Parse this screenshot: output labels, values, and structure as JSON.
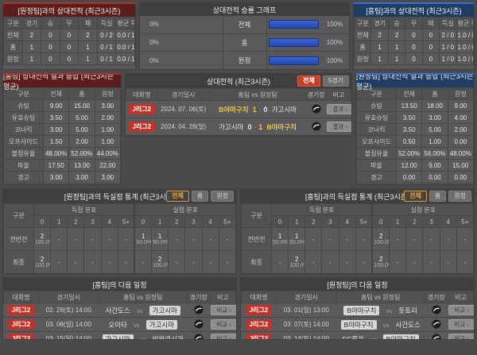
{
  "colors": {
    "accent_red": "#c1332a",
    "accent_blue": "#2b52c8",
    "accent_yellow": "#f3c73f",
    "panel_bg": "#59595b",
    "header_red": "#5c1e1c",
    "header_blue": "#1f3c63"
  },
  "h2h_away": {
    "title": "[원정팀]과의 상대전적 (최근3시즌)",
    "columns": [
      "구분",
      "경기",
      "승",
      "무",
      "패",
      "득실",
      "평균 득실"
    ],
    "rows": [
      [
        "전체",
        "2",
        "0",
        "0",
        "2",
        "0 / 2",
        "0.0 / 1.0"
      ],
      [
        "홈",
        "1",
        "0",
        "0",
        "1",
        "0 / 1",
        "0.0 / 1.0"
      ],
      [
        "원정",
        "1",
        "0",
        "0",
        "1",
        "0 / 1",
        "0.0 / 1.0"
      ]
    ]
  },
  "winrate_chart": {
    "title": "상대전적 승률 그래프",
    "rows": [
      {
        "label": "전체",
        "left_pct": 0,
        "right_pct": 100
      },
      {
        "label": "홈",
        "left_pct": 0,
        "right_pct": 100
      },
      {
        "label": "원정",
        "left_pct": 0,
        "right_pct": 100
      }
    ]
  },
  "chart_data": {
    "type": "bar",
    "orientation": "horizontal",
    "title": "상대전적 승률 그래프",
    "categories": [
      "전체",
      "홈",
      "원정"
    ],
    "series": [
      {
        "name": "홈팀 승률(%)",
        "values": [
          0,
          0,
          0
        ]
      },
      {
        "name": "원정팀 승률(%)",
        "values": [
          100,
          100,
          100
        ]
      }
    ],
    "xlim": [
      0,
      100
    ]
  },
  "h2h_home": {
    "title": "[홈팀]과의 상대전적 (최근3시즌)",
    "columns": [
      "구분",
      "경기",
      "승",
      "무",
      "패",
      "득실",
      "평균 득실"
    ],
    "rows": [
      [
        "전체",
        "2",
        "2",
        "0",
        "0",
        "2 / 0",
        "1.0 / 0.0"
      ],
      [
        "홈",
        "1",
        "1",
        "0",
        "0",
        "1 / 0",
        "1.0 / 0.0"
      ],
      [
        "원정",
        "1",
        "1",
        "0",
        "0",
        "1 / 0",
        "1.0 / 0.0"
      ]
    ]
  },
  "home_summary": {
    "title": "[홈팀] 상대전적 결과 종합 (최근3시즌 평균)",
    "columns": [
      "구분",
      "전체",
      "홈",
      "원정"
    ],
    "rows": [
      [
        "슈팅",
        "9.00",
        "15.00",
        "3.00"
      ],
      [
        "유효슈팅",
        "3.50",
        "5.00",
        "2.00"
      ],
      [
        "코너킥",
        "3.00",
        "5.00",
        "1.00"
      ],
      [
        "오프사이드",
        "1.50",
        "2.00",
        "1.00"
      ],
      [
        "볼점유율",
        "48.00%",
        "52.00%",
        "44.00%"
      ],
      [
        "파울",
        "17.50",
        "13.00",
        "22.00"
      ],
      [
        "경고",
        "3.00",
        "3.00",
        "3.00"
      ],
      [
        "퇴장",
        "0.00",
        "0.00",
        "-"
      ]
    ]
  },
  "away_summary": {
    "title": "[원정팀] 상대전적 결과 종합 (최근3시즌 평균)",
    "columns": [
      "구분",
      "전체",
      "홈",
      "원정"
    ],
    "rows": [
      [
        "슈팅",
        "13.50",
        "18.00",
        "9.00"
      ],
      [
        "유효슈팅",
        "3.50",
        "3.00",
        "4.00"
      ],
      [
        "코너킥",
        "3.50",
        "5.00",
        "2.00"
      ],
      [
        "오프사이드",
        "0.50",
        "1.00",
        "0.00"
      ],
      [
        "볼점유율",
        "52.00%",
        "56.00%",
        "48.00%"
      ],
      [
        "파울",
        "12.00",
        "9.00",
        "15.00"
      ],
      [
        "경고",
        "0.00",
        "0.00",
        "0.00"
      ],
      [
        "퇴장",
        "0.00",
        "-",
        "0.00"
      ]
    ]
  },
  "h2h_matches": {
    "title": "상대전적 (최근3시즌)",
    "filters": [
      {
        "label": "전체",
        "active": true,
        "style": "red"
      },
      {
        "label": "5경기",
        "active": false,
        "style": "gray"
      }
    ],
    "columns": [
      "대회명",
      "경기일시",
      "홈팀 vs 원정팀",
      "경기장",
      "비고"
    ],
    "rows": [
      {
        "league": "J리그2",
        "date": "2024. 07. 06(토)",
        "home": {
          "name": "B야마구치",
          "hl": "yellow"
        },
        "score": [
          {
            "v": "1",
            "hl": true
          },
          {
            "v": "0",
            "hl": false
          }
        ],
        "away": {
          "name": "가고시마",
          "hl": "none"
        },
        "note": "결과 ›"
      },
      {
        "league": "J리그2",
        "date": "2024. 04. 28(일)",
        "home": {
          "name": "가고시마",
          "hl": "none"
        },
        "score": [
          {
            "v": "0",
            "hl": false
          },
          {
            "v": "1",
            "hl": true
          }
        ],
        "away": {
          "name": "B야마구치",
          "hl": "yellow"
        },
        "note": "결과 ›"
      }
    ]
  },
  "goal_stats_away": {
    "title": "[원정팀]과의 득실점 통계 (최근3시즌)",
    "filters": [
      {
        "label": "전체",
        "active": true,
        "style": "orange"
      },
      {
        "label": "홈",
        "active": false,
        "style": "gray"
      },
      {
        "label": "원정",
        "active": false,
        "style": "gray"
      }
    ],
    "corner_label": "구분",
    "groups": [
      "득점 분포",
      "실점 분포"
    ],
    "cols": [
      "0",
      "1",
      "2",
      "3",
      "4",
      "5+"
    ],
    "rows": [
      {
        "label": "전반전",
        "cells": [
          [
            "2",
            "100.0%"
          ],
          "-",
          "-",
          "-",
          "-",
          "-",
          [
            "1",
            "50.0%"
          ],
          [
            "1",
            "50.0%"
          ],
          "-",
          "-",
          "-",
          "-"
        ]
      },
      {
        "label": "최종",
        "cells": [
          [
            "2",
            "100.0%"
          ],
          "-",
          "-",
          "-",
          "-",
          "-",
          "-",
          [
            "2",
            "100.0%"
          ],
          "-",
          "-",
          "-",
          "-"
        ]
      }
    ]
  },
  "goal_stats_home": {
    "title": "[홈팀]과의 득실점 통계 (최근3시즌)",
    "filters": [
      {
        "label": "전체",
        "active": true,
        "style": "orange"
      },
      {
        "label": "홈",
        "active": false,
        "style": "gray"
      },
      {
        "label": "원정",
        "active": false,
        "style": "gray"
      }
    ],
    "corner_label": "구분",
    "groups": [
      "득점 분포",
      "실점 분포"
    ],
    "cols": [
      "0",
      "1",
      "2",
      "3",
      "4",
      "5+"
    ],
    "rows": [
      {
        "label": "전반전",
        "cells": [
          [
            "1",
            "50.0%"
          ],
          [
            "1",
            "50.0%"
          ],
          "-",
          "-",
          "-",
          "-",
          [
            "2",
            "100.0%"
          ],
          "-",
          "-",
          "-",
          "-",
          "-"
        ]
      },
      {
        "label": "최종",
        "cells": [
          "-",
          [
            "2",
            "100.0%"
          ],
          "-",
          "-",
          "-",
          "-",
          [
            "2",
            "100.0%"
          ],
          "-",
          "-",
          "-",
          "-",
          "-"
        ]
      }
    ]
  },
  "next_home": {
    "title": "[홈팀]의 다음 일정",
    "columns": [
      "대회명",
      "경기일시",
      "홈팀 vs 원정팀",
      "경기장",
      "비고"
    ],
    "rows": [
      {
        "league": "J리그2",
        "date": "02. 28(토) 14:00",
        "home": {
          "name": "사간도스",
          "hl": "none"
        },
        "score": null,
        "away": {
          "name": "가고시마",
          "hl": "box"
        },
        "note": "비교 ›"
      },
      {
        "league": "J리그2",
        "date": "03. 08(일) 14:00",
        "home": {
          "name": "오이타",
          "hl": "none"
        },
        "score": null,
        "away": {
          "name": "가고시마",
          "hl": "box"
        },
        "note": "비교 ›"
      },
      {
        "league": "J리그2",
        "date": "03. 15(일) 14:00",
        "home": {
          "name": "가고시마",
          "hl": "box"
        },
        "score": null,
        "away": {
          "name": "비와코시가",
          "hl": "none"
        },
        "note": "비교 ›"
      }
    ]
  },
  "next_away": {
    "title": "[원정팀]의 다음 일정",
    "columns": [
      "대회명",
      "경기일시",
      "홈팀 vs 원정팀",
      "경기장",
      "비고"
    ],
    "rows": [
      {
        "league": "J리그2",
        "date": "03. 01(일) 13:00",
        "home": {
          "name": "B야마구치",
          "hl": "box"
        },
        "score": null,
        "away": {
          "name": "돗토리",
          "hl": "none"
        },
        "note": "비교 ›"
      },
      {
        "league": "J리그2",
        "date": "03. 07(토) 14:00",
        "home": {
          "name": "B야마구치",
          "hl": "box"
        },
        "score": null,
        "away": {
          "name": "사간도스",
          "hl": "none"
        },
        "note": "비교 ›"
      },
      {
        "league": "J리그2",
        "date": "03. 14(토) 14:00",
        "home": {
          "name": "FC류큐",
          "hl": "none"
        },
        "score": null,
        "away": {
          "name": "B야마구치",
          "hl": "box"
        },
        "note": "비교 ›"
      }
    ]
  }
}
